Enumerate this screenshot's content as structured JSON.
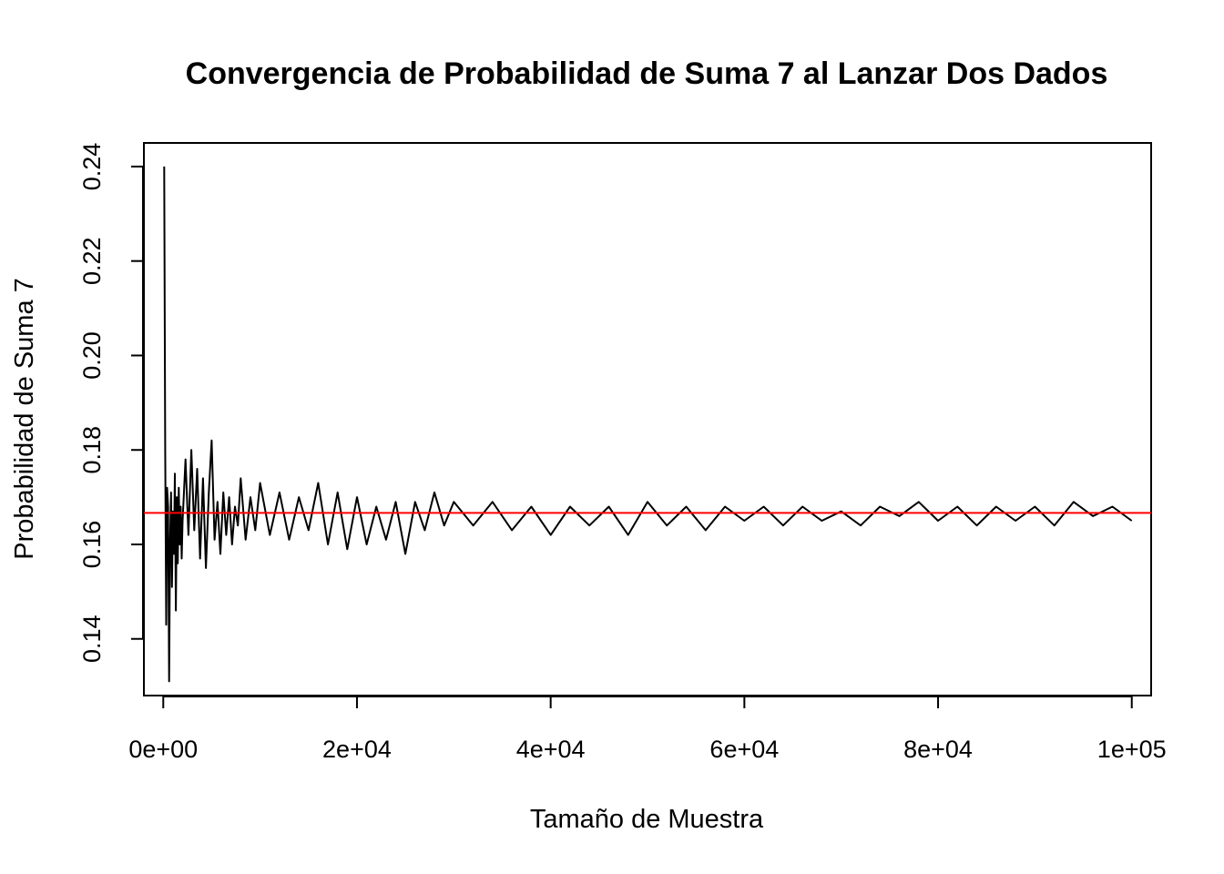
{
  "chart_data": {
    "type": "line",
    "title": "Convergencia de Probabilidad de Suma 7 al Lanzar Dos Dados",
    "xlabel": "Tamaño de Muestra",
    "ylabel": "Probabilidad de Suma 7",
    "xlim": [
      -2000,
      102000
    ],
    "ylim": [
      0.128,
      0.245
    ],
    "x_ticks": [
      {
        "value": 0,
        "label": "0e+00"
      },
      {
        "value": 20000,
        "label": "2e+04"
      },
      {
        "value": 40000,
        "label": "4e+04"
      },
      {
        "value": 60000,
        "label": "6e+04"
      },
      {
        "value": 80000,
        "label": "8e+04"
      },
      {
        "value": 100000,
        "label": "1e+05"
      }
    ],
    "y_ticks": [
      {
        "value": 0.14,
        "label": "0.14"
      },
      {
        "value": 0.16,
        "label": "0.16"
      },
      {
        "value": 0.18,
        "label": "0.18"
      },
      {
        "value": 0.2,
        "label": "0.20"
      },
      {
        "value": 0.22,
        "label": "0.22"
      },
      {
        "value": 0.24,
        "label": "0.24"
      }
    ],
    "grid": false,
    "reference_line": {
      "y": 0.16667,
      "color": "#ff0000"
    },
    "series": [
      {
        "color": "#000000",
        "x": [
          100,
          200,
          300,
          400,
          500,
          600,
          700,
          800,
          900,
          1000,
          1100,
          1200,
          1300,
          1400,
          1500,
          1600,
          1700,
          1800,
          1900,
          2000,
          2300,
          2600,
          2900,
          3200,
          3500,
          3800,
          4100,
          4400,
          4700,
          5000,
          5300,
          5600,
          5900,
          6200,
          6500,
          6800,
          7100,
          7400,
          7700,
          8000,
          8500,
          9000,
          9500,
          10000,
          11000,
          12000,
          13000,
          14000,
          15000,
          16000,
          17000,
          18000,
          19000,
          20000,
          21000,
          22000,
          23000,
          24000,
          25000,
          26000,
          27000,
          28000,
          29000,
          30000,
          32000,
          34000,
          36000,
          38000,
          40000,
          42000,
          44000,
          46000,
          48000,
          50000,
          52000,
          54000,
          56000,
          58000,
          60000,
          62000,
          64000,
          66000,
          68000,
          70000,
          72000,
          74000,
          76000,
          78000,
          80000,
          82000,
          84000,
          86000,
          88000,
          90000,
          92000,
          94000,
          96000,
          98000,
          100000
        ],
        "values": [
          0.24,
          0.18,
          0.143,
          0.172,
          0.168,
          0.131,
          0.16,
          0.171,
          0.151,
          0.167,
          0.158,
          0.175,
          0.146,
          0.17,
          0.156,
          0.172,
          0.16,
          0.168,
          0.157,
          0.165,
          0.178,
          0.162,
          0.18,
          0.163,
          0.176,
          0.157,
          0.174,
          0.155,
          0.171,
          0.182,
          0.161,
          0.169,
          0.158,
          0.171,
          0.162,
          0.17,
          0.16,
          0.168,
          0.164,
          0.174,
          0.161,
          0.17,
          0.163,
          0.173,
          0.162,
          0.171,
          0.161,
          0.17,
          0.163,
          0.173,
          0.16,
          0.171,
          0.159,
          0.17,
          0.16,
          0.168,
          0.161,
          0.169,
          0.158,
          0.169,
          0.163,
          0.171,
          0.164,
          0.169,
          0.164,
          0.169,
          0.163,
          0.168,
          0.162,
          0.168,
          0.164,
          0.168,
          0.162,
          0.169,
          0.164,
          0.168,
          0.163,
          0.168,
          0.165,
          0.168,
          0.164,
          0.168,
          0.165,
          0.167,
          0.164,
          0.168,
          0.166,
          0.169,
          0.165,
          0.168,
          0.164,
          0.168,
          0.165,
          0.168,
          0.164,
          0.169,
          0.166,
          0.168,
          0.165
        ]
      }
    ]
  }
}
